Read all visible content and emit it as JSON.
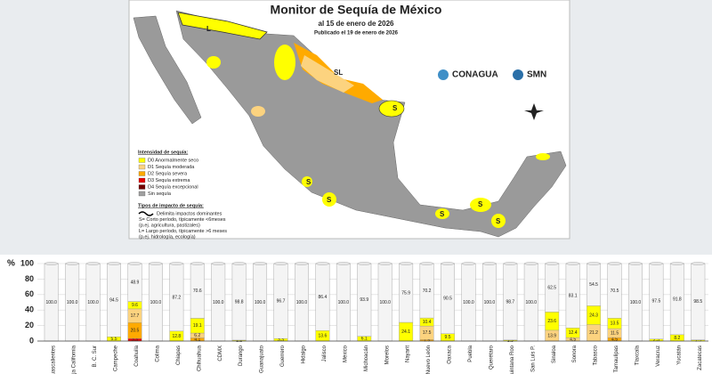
{
  "header": {
    "title": "Monitor de Sequía de México",
    "date": "al 15 de enero de 2026",
    "published": "Publicado el 19 de enero de 2026",
    "logo1": "CONAGUA",
    "logo2": "SMN"
  },
  "legend": {
    "title": "Intensidad de sequía:",
    "items": [
      {
        "label": "D0 Anormalmente seco",
        "color": "#ffff00"
      },
      {
        "label": "D1 Sequía moderada",
        "color": "#fcd37f"
      },
      {
        "label": "D2 Sequía severa",
        "color": "#ffaa00"
      },
      {
        "label": "D3 Sequía extrema",
        "color": "#e60000"
      },
      {
        "label": "D4 Sequía excepcional",
        "color": "#730000"
      },
      {
        "label": "Sin sequía",
        "color": "#a0a0a0"
      }
    ],
    "impact_title": "Tipos de impacto de sequía:",
    "impact_lines": [
      "Delimita impactos dominantes",
      "S= Corto período, típicamente <6meses",
      "(p.ej. agricultura, pastizales)",
      "L= Largo período, típicamente >6 meses",
      "(p.ej. hidrología, ecología)"
    ]
  },
  "map": {
    "labels": [
      "L",
      "SL",
      "S",
      "S",
      "S",
      "S",
      "S",
      "S"
    ]
  },
  "chart_data": {
    "type": "stacked-bar",
    "ylabel": "%",
    "categories": [
      "Aguascalientes",
      "Baja California",
      "B. C. Sur",
      "Campeche",
      "Coahuila",
      "Colima",
      "Chiapas",
      "Chihuahua",
      "CDMX",
      "Durango",
      "Guanajuato",
      "Guerrero",
      "Hidalgo",
      "Jalisco",
      "México",
      "Michoacán",
      "Morelos",
      "Nayarit",
      "Nuevo León",
      "Oaxaca",
      "Puebla",
      "Querétaro",
      "Quintana Roo",
      "San Luis P.",
      "Sinaloa",
      "Sonora",
      "Tabasco",
      "Tamaulipas",
      "Tlaxcala",
      "Veracruz",
      "Yucatán",
      "Zacatecas"
    ],
    "series": [
      {
        "color": "#f4f4f4",
        "values": [
          100,
          100,
          100,
          94.5,
          48.9,
          100,
          87.2,
          70.6,
          100,
          98.8,
          100,
          96.7,
          100,
          86.4,
          100,
          93.9,
          100,
          75.9,
          70.2,
          90.5,
          100,
          100,
          98.7,
          100,
          62.5,
          83.1,
          54.5,
          70.5,
          100,
          97.5,
          91.8,
          98.5
        ],
        "value_labels": [
          "100.0",
          "100.0",
          "100.0",
          "94.5",
          "48.9",
          "100.0",
          "87.2",
          "70.6",
          "100.0",
          "98.8",
          "100.0",
          "96.7",
          "100.0",
          "86.4",
          "100.0",
          "93.9",
          "100.0",
          "75.9",
          "70.2",
          "90.5",
          "100.0",
          "100.0",
          "98.7",
          "100.0",
          "62.5",
          "83.1",
          "54.5",
          "70.5",
          "100.0",
          "97.5",
          "91.8",
          "98.5"
        ]
      },
      {
        "color": "#ffff00",
        "values": [
          0,
          0,
          0,
          5.5,
          9.6,
          0,
          12.8,
          19.1,
          0,
          1.2,
          0,
          3.3,
          0,
          13.6,
          0,
          6.1,
          0,
          24.1,
          10.4,
          9.5,
          0,
          0,
          1.3,
          0,
          23.6,
          12.4,
          24.3,
          13.5,
          0,
          2.5,
          8.2,
          1.5
        ]
      },
      {
        "color": "#fcd37f",
        "values": [
          0,
          0,
          0,
          0,
          17.7,
          0,
          0,
          6.2,
          0,
          0,
          0,
          0,
          0,
          0,
          0,
          0,
          0,
          0,
          17.5,
          0,
          0,
          0,
          0,
          0,
          13.9,
          4.5,
          21.2,
          11.5,
          0,
          0,
          0,
          0
        ]
      },
      {
        "color": "#ffaa00",
        "values": [
          0,
          0,
          0,
          0,
          20.5,
          0,
          0,
          4.1,
          0,
          0,
          0,
          0,
          0,
          0,
          0,
          0,
          0,
          0,
          1.9,
          0,
          0,
          0,
          0,
          0,
          0,
          0,
          0,
          4.5,
          0,
          0,
          0,
          0
        ]
      },
      {
        "color": "#e60000",
        "values": [
          0,
          0,
          0,
          0,
          3.3,
          0,
          0,
          0,
          0,
          0,
          0,
          0,
          0,
          0,
          0,
          0,
          0,
          0,
          0,
          0,
          0,
          0,
          0,
          0,
          0,
          0,
          0,
          0,
          0,
          0,
          0,
          0
        ]
      }
    ],
    "ylim": [
      0,
      100
    ],
    "yticks": [
      0,
      20,
      40,
      60,
      80,
      100
    ]
  }
}
